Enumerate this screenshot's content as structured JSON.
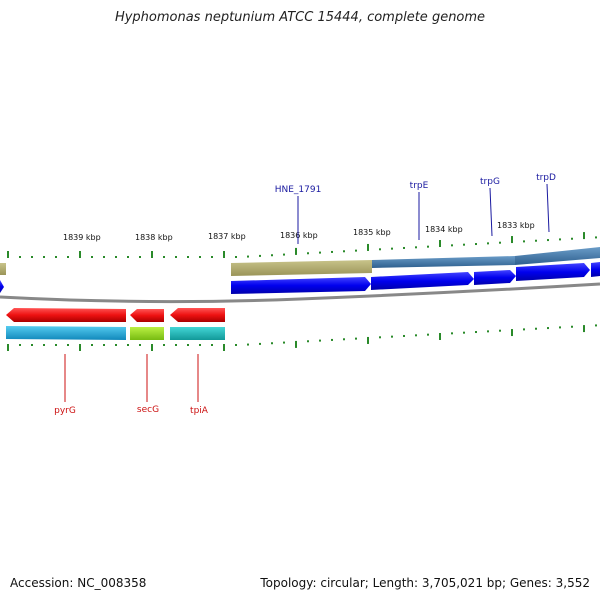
{
  "header": {
    "title": "Hyphomonas neptunium ATCC 15444, complete genome"
  },
  "footer": {
    "accession": "Accession: NC_008358",
    "summary": "Topology: circular; Length: 3,705,021 bp; Genes: 3,552"
  },
  "map": {
    "kbp_labels": [
      {
        "text": "1839 kbp"
      },
      {
        "text": "1838 kbp"
      },
      {
        "text": "1837 kbp"
      },
      {
        "text": "1836 kbp"
      },
      {
        "text": "1835 kbp"
      },
      {
        "text": "1834 kbp"
      },
      {
        "text": "1833 kbp"
      }
    ],
    "top_genes": [
      {
        "name": "HNE_1791"
      },
      {
        "name": "trpE"
      },
      {
        "name": "trpG"
      },
      {
        "name": "trpD"
      }
    ],
    "bottom_genes": [
      {
        "name": "pyrG"
      },
      {
        "name": "secG"
      },
      {
        "name": "tpiA"
      }
    ],
    "colors": {
      "forward_gene": "#0000ee",
      "reverse_gene": "#ee1111",
      "top_label": "#1a1aa0",
      "bottom_label": "#cc1111",
      "tick": "#2a8a2a",
      "backbone": "#888888",
      "olive": "#b0aa6a",
      "steel": "#4a7fb0",
      "cyan": "#22aadd",
      "lime": "#99dd22",
      "teal": "#22bbbb"
    }
  }
}
